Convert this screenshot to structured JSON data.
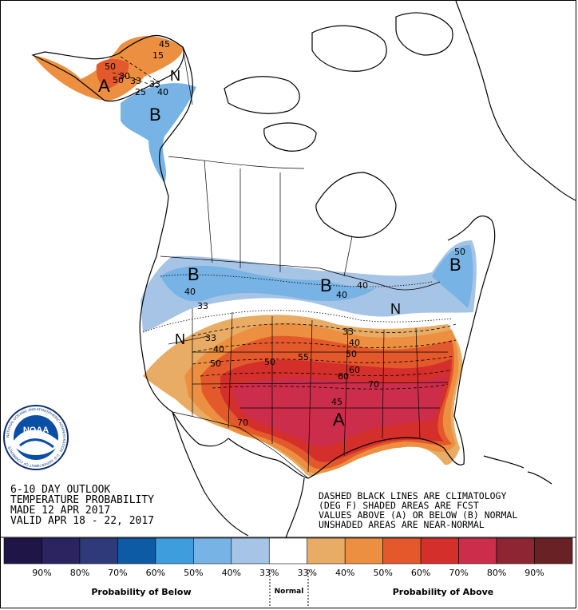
{
  "product": {
    "line1": "6-10 DAY OUTLOOK",
    "line2": "TEMPERATURE PROBABILITY",
    "line3": "MADE  12 APR 2017",
    "line4": "VALID  APR 18 - 22, 2017"
  },
  "notes": {
    "line1": "DASHED BLACK LINES ARE CLIMATOLOGY",
    "line2": "(DEG F) SHADED AREAS ARE FCST",
    "line3": "VALUES ABOVE (A) OR BELOW (B) NORMAL",
    "line4": "UNSHADED AREAS ARE NEAR-NORMAL"
  },
  "logo": {
    "center_text": "NOAA",
    "ring_text": "NATIONAL OCEANIC AND ATMOSPHERIC ADMINISTRATION · U.S. DEPARTMENT OF COMMERCE"
  },
  "map_labels": {
    "above": "A",
    "below": "B",
    "normal": "N"
  },
  "contours": {
    "c15": "15",
    "c25": "25",
    "c30": "30",
    "c33": "33",
    "c40": "40",
    "c45": "45",
    "c50": "50",
    "c55": "55",
    "c60": "60",
    "c70": "70"
  },
  "legend": {
    "title_below": "Probability of Below",
    "title_normal": "Normal",
    "title_above": "Probability of Above",
    "colors": [
      "#1f1547",
      "#2b2461",
      "#2e3a7a",
      "#0d5aa5",
      "#3e9ddc",
      "#77b3e4",
      "#a6c4e6",
      "#ffffff",
      "#e8ac64",
      "#ec8f40",
      "#e3592b",
      "#d42f2b",
      "#cc2d4b",
      "#8e2532",
      "#6a2125"
    ],
    "labels": [
      "90%",
      "80%",
      "70%",
      "60%",
      "50%",
      "40%",
      "33%",
      "33%",
      "40%",
      "50%",
      "60%",
      "70%",
      "80%",
      "90%"
    ]
  }
}
